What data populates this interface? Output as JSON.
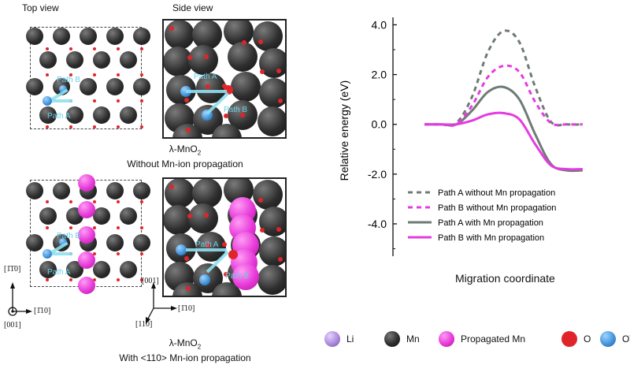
{
  "left": {
    "top_view_label": "Top view",
    "side_view_label": "Side view",
    "upper_caption_formula": "λ-MnO",
    "upper_caption_sub": "2",
    "upper_caption_line2": "Without Mn-ion propagation",
    "lower_caption_formula": "λ-MnO",
    "lower_caption_sub": "2",
    "lower_caption_line2": "With <110> Mn-ion propagation",
    "path_a": "Path A",
    "path_b": "Path B",
    "axes_top": {
      "up": "[1̄1̄0]",
      "right": "[1̄10]",
      "out": "[001]"
    },
    "axes_side": {
      "up": "[001]",
      "right": "[1̄10]",
      "down": "[110]"
    }
  },
  "chart_data": {
    "type": "line",
    "ylabel": "Relative energy (eV)",
    "xlabel": "Migration coordinate",
    "ylim": [
      -5.3,
      4.3
    ],
    "yticks": [
      "4.0",
      "2.0",
      "0.0",
      "-2.0",
      "-4.0"
    ],
    "ytick_values": [
      4.0,
      2.0,
      0.0,
      -2.0,
      -4.0
    ],
    "x": [
      0,
      0.1,
      0.2,
      0.3,
      0.4,
      0.5,
      0.6,
      0.7,
      0.8,
      0.9,
      1.0
    ],
    "series": [
      {
        "name": "Path A without Mn propagation",
        "color": "#6e7c74",
        "dash": true,
        "values": [
          0,
          0,
          0.05,
          1.1,
          2.9,
          3.75,
          3.3,
          1.5,
          0.1,
          0,
          0
        ]
      },
      {
        "name": "Path B without Mn propagation",
        "color": "#e43ce0",
        "dash": true,
        "values": [
          0,
          0,
          0,
          0.75,
          1.9,
          2.35,
          2.1,
          0.9,
          0.05,
          0,
          0
        ]
      },
      {
        "name": "Path A with Mn propagation",
        "color": "#6e7c74",
        "dash": false,
        "values": [
          0,
          0,
          0,
          0.55,
          1.3,
          1.5,
          1.0,
          -0.4,
          -1.6,
          -1.85,
          -1.85
        ]
      },
      {
        "name": "Path B with Mn propagation",
        "color": "#e43ce0",
        "dash": false,
        "values": [
          0,
          0,
          0,
          0.15,
          0.4,
          0.45,
          0.2,
          -0.8,
          -1.65,
          -1.8,
          -1.8
        ]
      }
    ]
  },
  "atom_legend": [
    {
      "label": "Li",
      "kind": "li"
    },
    {
      "label": "Mn",
      "kind": "mn"
    },
    {
      "label": "Propagated Mn",
      "kind": "pmn"
    },
    {
      "label": "O",
      "kind": "ox"
    },
    {
      "label": "OV",
      "kind": "ov"
    }
  ]
}
